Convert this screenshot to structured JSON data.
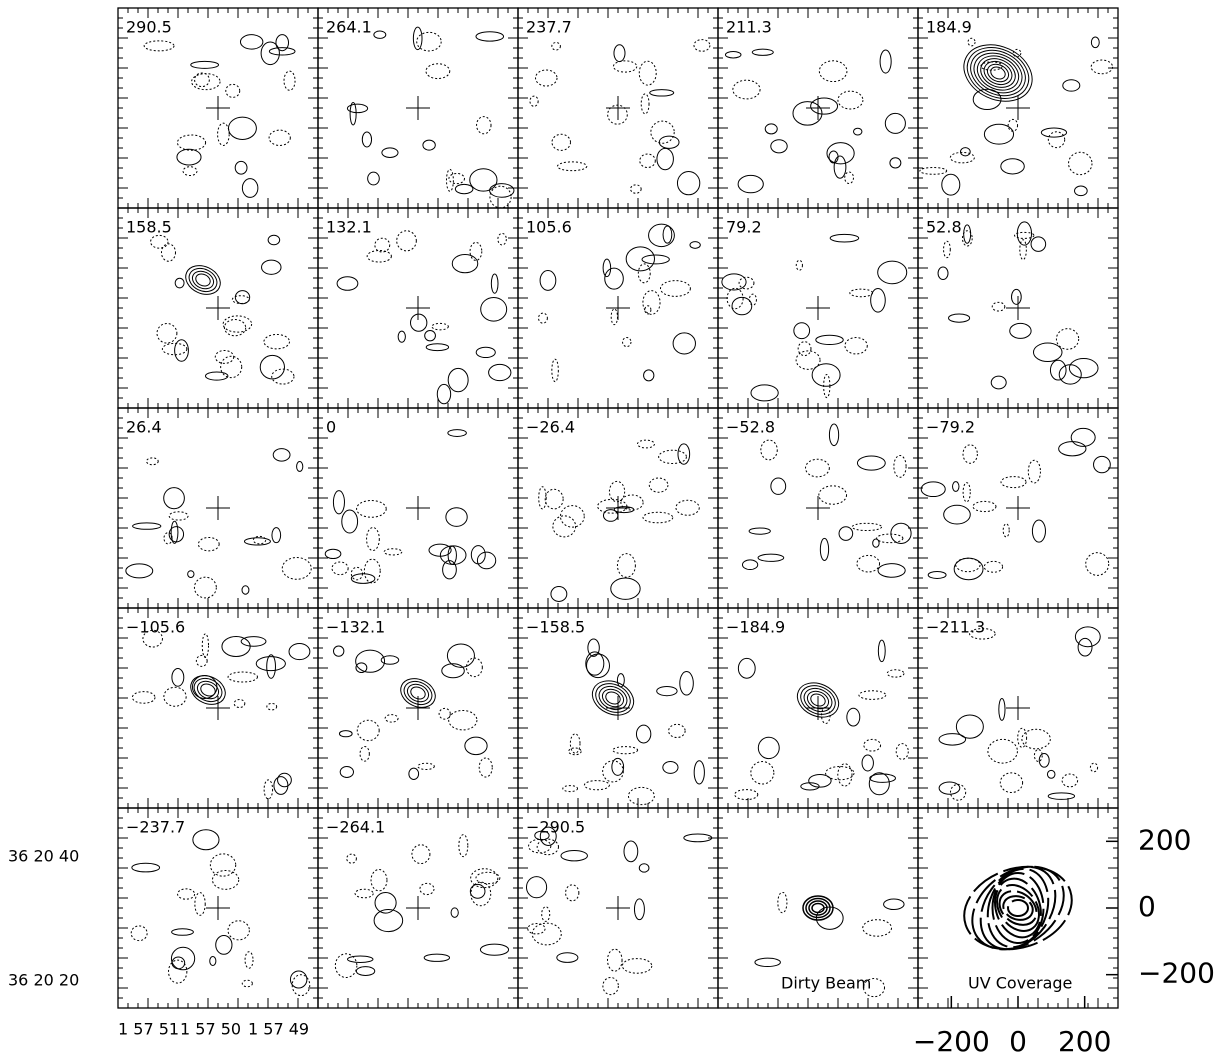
{
  "panels": [
    "290.5",
    "264.1",
    "237.7",
    "211.3",
    "184.9",
    "158.5",
    "132.1",
    "105.6",
    "79.2",
    "52.8",
    "26.4",
    "0",
    "−26.4",
    "−52.8",
    "−79.2",
    "−105.6",
    "−132.1",
    "−158.5",
    "−184.9",
    "−211.3",
    "−237.7",
    "−264.1",
    "−290.5",
    "Dirty Beam",
    "UV Coverage"
  ],
  "dec_ticks": [
    "36 20 40",
    "36 20 20"
  ],
  "ra_ticks": [
    "1 57 51",
    "1 57 50",
    "1 57 49"
  ],
  "uv_axis": {
    "xlim": [
      -300,
      300
    ],
    "ylim": [
      -300,
      300
    ],
    "xticks": [
      {
        "value": -200,
        "label": "−200"
      },
      0,
      200
    ],
    "yticks": [
      200,
      0,
      {
        "value": -200,
        "label": "−200"
      }
    ]
  }
}
